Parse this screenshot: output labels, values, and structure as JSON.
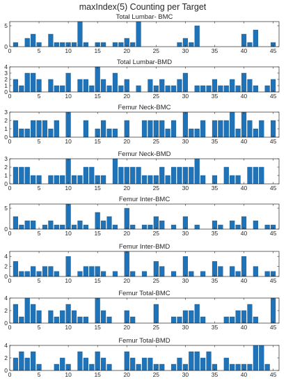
{
  "figure_title": "maxIndex(5) Counting per Target",
  "colors": {
    "bar": "#1f73b8",
    "bar_edge": "#0e4f86",
    "axis": "#262626",
    "text": "#262626"
  },
  "chart_data": [
    {
      "type": "bar",
      "title": "Total Lumbar- BMC",
      "x": [
        1,
        2,
        3,
        4,
        5,
        6,
        7,
        8,
        9,
        10,
        11,
        12,
        13,
        14,
        15,
        16,
        17,
        18,
        19,
        20,
        21,
        22,
        23,
        24,
        25,
        26,
        27,
        28,
        29,
        30,
        31,
        32,
        33,
        34,
        35,
        36,
        37,
        38,
        39,
        40,
        41,
        42,
        43,
        44,
        45
      ],
      "values": [
        1,
        0,
        2,
        3,
        1,
        0,
        3,
        1,
        1,
        1,
        1,
        6,
        1,
        0,
        1,
        1,
        0,
        1,
        1,
        2,
        1,
        6,
        0,
        0,
        0,
        0,
        0,
        0,
        1,
        2,
        1,
        5,
        0,
        0,
        0,
        0,
        0,
        0,
        0,
        3,
        1,
        4,
        0,
        0,
        1
      ],
      "xlim": [
        0,
        46
      ],
      "ylim": [
        0,
        6
      ],
      "yticks": [
        0,
        5
      ],
      "xticks": [
        0,
        5,
        10,
        15,
        20,
        25,
        30,
        35,
        40,
        45
      ]
    },
    {
      "type": "bar",
      "title": "Total Lumbar-BMD",
      "x": [
        1,
        2,
        3,
        4,
        5,
        6,
        7,
        8,
        9,
        10,
        11,
        12,
        13,
        14,
        15,
        16,
        17,
        18,
        19,
        20,
        21,
        22,
        23,
        24,
        25,
        26,
        27,
        28,
        29,
        30,
        31,
        32,
        33,
        34,
        35,
        36,
        37,
        38,
        39,
        40,
        41,
        42,
        43,
        44,
        45
      ],
      "values": [
        2,
        1,
        3,
        3,
        2,
        0,
        2,
        1,
        1,
        3,
        0,
        2,
        2,
        1,
        4,
        2,
        1,
        3,
        1,
        2,
        0,
        1,
        0,
        2,
        1,
        2,
        1,
        1,
        2,
        3,
        0,
        1,
        1,
        1,
        2,
        1,
        1,
        2,
        1,
        3,
        2,
        1,
        0,
        1,
        2
      ],
      "xlim": [
        0,
        46
      ],
      "ylim": [
        0,
        4
      ],
      "yticks": [
        0,
        1,
        2,
        3,
        4
      ],
      "xticks": [
        0,
        5,
        10,
        15,
        20,
        25,
        30,
        35,
        40,
        45
      ]
    },
    {
      "type": "bar",
      "title": "Femur Neck-BMC",
      "x": [
        1,
        2,
        3,
        4,
        5,
        6,
        7,
        8,
        9,
        10,
        11,
        12,
        13,
        14,
        15,
        16,
        17,
        18,
        19,
        20,
        21,
        22,
        23,
        24,
        25,
        26,
        27,
        28,
        29,
        30,
        31,
        32,
        33,
        34,
        35,
        36,
        37,
        38,
        39,
        40,
        41,
        42,
        43,
        44,
        45
      ],
      "values": [
        2,
        1,
        1,
        2,
        2,
        2,
        1,
        2,
        0,
        3,
        0,
        0,
        2,
        0,
        1,
        2,
        1,
        1,
        0,
        2,
        0,
        0,
        2,
        2,
        2,
        2,
        1,
        2,
        0,
        3,
        1,
        1,
        2,
        0,
        2,
        2,
        2,
        3,
        1,
        3,
        2,
        1,
        2,
        0,
        2
      ],
      "xlim": [
        0,
        46
      ],
      "ylim": [
        0,
        3
      ],
      "yticks": [
        0,
        1,
        2,
        3
      ],
      "xticks": [
        0,
        5,
        10,
        15,
        20,
        25,
        30,
        35,
        40,
        45
      ]
    },
    {
      "type": "bar",
      "title": "Femur Neck-BMD",
      "x": [
        1,
        2,
        3,
        4,
        5,
        6,
        7,
        8,
        9,
        10,
        11,
        12,
        13,
        14,
        15,
        16,
        17,
        18,
        19,
        20,
        21,
        22,
        23,
        24,
        25,
        26,
        27,
        28,
        29,
        30,
        31,
        32,
        33,
        34,
        35,
        36,
        37,
        38,
        39,
        40,
        41,
        42,
        43,
        44,
        45
      ],
      "values": [
        2,
        2,
        2,
        1,
        1,
        0,
        1,
        1,
        1,
        3,
        1,
        1,
        2,
        2,
        1,
        1,
        0,
        3,
        2,
        2,
        2,
        2,
        1,
        1,
        1,
        2,
        1,
        2,
        2,
        2,
        2,
        3,
        1,
        0,
        1,
        0,
        2,
        1,
        1,
        0,
        2,
        2,
        2,
        0,
        0
      ],
      "xlim": [
        0,
        46
      ],
      "ylim": [
        0,
        3
      ],
      "yticks": [
        0,
        1,
        2,
        3
      ],
      "xticks": [
        0,
        5,
        10,
        15,
        20,
        25,
        30,
        35,
        40,
        45
      ]
    },
    {
      "type": "bar",
      "title": "Femur Inter-BMC",
      "x": [
        1,
        2,
        3,
        4,
        5,
        6,
        7,
        8,
        9,
        10,
        11,
        12,
        13,
        14,
        15,
        16,
        17,
        18,
        19,
        20,
        21,
        22,
        23,
        24,
        25,
        26,
        27,
        28,
        29,
        30,
        31,
        32,
        33,
        34,
        35,
        36,
        37,
        38,
        39,
        40,
        41,
        42,
        43,
        44,
        45
      ],
      "values": [
        3,
        1,
        2,
        2,
        0,
        1,
        2,
        1,
        1,
        6,
        1,
        2,
        1,
        0,
        4,
        2,
        3,
        1,
        0,
        5,
        1,
        0,
        1,
        1,
        3,
        2,
        0,
        1,
        0,
        3,
        0,
        1,
        0,
        0,
        2,
        1,
        0,
        2,
        1,
        3,
        0,
        2,
        0,
        1,
        1
      ],
      "xlim": [
        0,
        46
      ],
      "ylim": [
        0,
        6
      ],
      "yticks": [
        0,
        5
      ],
      "xticks": [
        0,
        5,
        10,
        15,
        20,
        25,
        30,
        35,
        40,
        45
      ]
    },
    {
      "type": "bar",
      "title": "Femur Inter-BMD",
      "x": [
        1,
        2,
        3,
        4,
        5,
        6,
        7,
        8,
        9,
        10,
        11,
        12,
        13,
        14,
        15,
        16,
        17,
        18,
        19,
        20,
        21,
        22,
        23,
        24,
        25,
        26,
        27,
        28,
        29,
        30,
        31,
        32,
        33,
        34,
        35,
        36,
        37,
        38,
        39,
        40,
        41,
        42,
        43,
        44,
        45
      ],
      "values": [
        3,
        1,
        1,
        2,
        1,
        2,
        2,
        1,
        0,
        4,
        0,
        1,
        2,
        2,
        2,
        1,
        0,
        1,
        0,
        5,
        1,
        0,
        1,
        0,
        3,
        2,
        0,
        1,
        0,
        4,
        1,
        0,
        1,
        0,
        3,
        2,
        0,
        2,
        1,
        4,
        0,
        2,
        0,
        1,
        1
      ],
      "xlim": [
        0,
        46
      ],
      "ylim": [
        0,
        5
      ],
      "yticks": [
        0,
        2,
        4
      ],
      "xticks": [
        0,
        5,
        10,
        15,
        20,
        25,
        30,
        35,
        40,
        45
      ]
    },
    {
      "type": "bar",
      "title": "Femur Total-BMC",
      "x": [
        1,
        2,
        3,
        4,
        5,
        6,
        7,
        8,
        9,
        10,
        11,
        12,
        13,
        14,
        15,
        16,
        17,
        18,
        19,
        20,
        21,
        22,
        23,
        24,
        25,
        26,
        27,
        28,
        29,
        30,
        31,
        32,
        33,
        34,
        35,
        36,
        37,
        38,
        39,
        40,
        41,
        42,
        43,
        44,
        45
      ],
      "values": [
        3,
        1,
        4,
        3,
        2,
        0,
        2,
        1,
        2,
        3,
        2,
        1,
        1,
        0,
        4,
        2,
        1,
        0,
        0,
        2,
        1,
        0,
        0,
        0,
        3,
        0,
        0,
        1,
        1,
        2,
        2,
        3,
        1,
        0,
        0,
        0,
        1,
        1,
        2,
        2,
        3,
        1,
        0,
        0,
        4
      ],
      "xlim": [
        0,
        46
      ],
      "ylim": [
        0,
        4
      ],
      "yticks": [
        0,
        2,
        4
      ],
      "xticks": [
        0,
        5,
        10,
        15,
        20,
        25,
        30,
        35,
        40,
        45
      ]
    },
    {
      "type": "bar",
      "title": "Femur Total-BMD",
      "x": [
        1,
        2,
        3,
        4,
        5,
        6,
        7,
        8,
        9,
        10,
        11,
        12,
        13,
        14,
        15,
        16,
        17,
        18,
        19,
        20,
        21,
        22,
        23,
        24,
        25,
        26,
        27,
        28,
        29,
        30,
        31,
        32,
        33,
        34,
        35,
        36,
        37,
        38,
        39,
        40,
        41,
        42,
        43,
        44,
        45
      ],
      "values": [
        2,
        3,
        2,
        3,
        1,
        0,
        0,
        1,
        2,
        1,
        0,
        3,
        2,
        1,
        3,
        2,
        1,
        0,
        0,
        3,
        2,
        1,
        2,
        2,
        1,
        1,
        0,
        1,
        2,
        1,
        3,
        3,
        2,
        3,
        1,
        0,
        2,
        1,
        1,
        1,
        1,
        4,
        4,
        1,
        0
      ],
      "xlim": [
        0,
        46
      ],
      "ylim": [
        0,
        4
      ],
      "yticks": [
        0,
        2,
        4
      ],
      "xticks": [
        0,
        5,
        10,
        15,
        20,
        25,
        30,
        35,
        40,
        45
      ]
    }
  ]
}
